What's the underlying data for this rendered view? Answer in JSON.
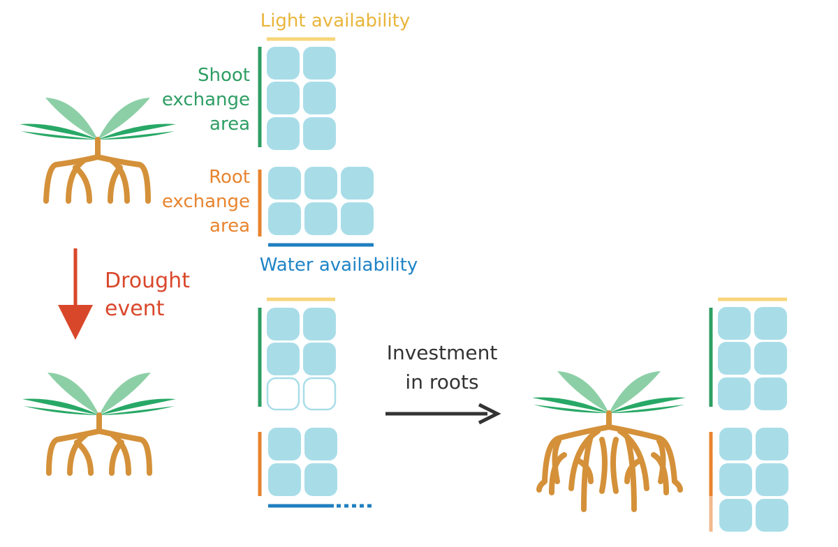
{
  "labels": {
    "light": "Light availability",
    "shoot_1": "Shoot",
    "shoot_2": "exchange",
    "shoot_3": "area",
    "root_1": "Root",
    "root_2": "exchange",
    "root_3": "area",
    "water": "Water availability",
    "drought_1": "Drought",
    "drought_2": "event",
    "invest_1": "Investment",
    "invest_2": "in roots"
  },
  "colors": {
    "green": "#2e9e63",
    "leaf_dark": "#28a866",
    "leaf_light": "#8ccfa6",
    "root": "#d4913a",
    "orange": "#e8842e",
    "orange_light": "#f2b98c",
    "light_bar": "#f7d57a",
    "water_bar": "#1f7fc0",
    "cell": "#a8dde8",
    "cell_empty_stroke": "#a8dde8",
    "red": "#d9472b",
    "arrow_dark": "#333333",
    "light_text": "#e8b53a",
    "water_text": "#1f84c6",
    "shoot_text": "#2e9e63",
    "root_text": "#e8842e"
  }
}
